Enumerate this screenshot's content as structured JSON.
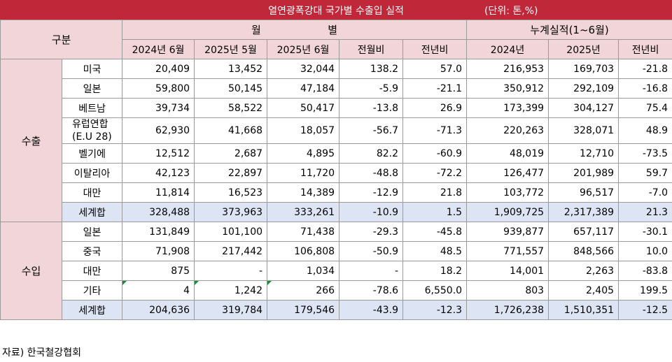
{
  "title": "열연광폭강대 국가별 수출입 실적",
  "unit": "(단위: 톤,%)",
  "header": {
    "category": "구분",
    "monthly": "월                    별",
    "cumulative": "누계실적(1~6월)",
    "columns": [
      "2024년 6월",
      "2025년 5월",
      "2025년 6월",
      "전월비",
      "전년비",
      "2024년",
      "2025년",
      "전년비"
    ]
  },
  "sections": {
    "export": "수출",
    "import": "수입"
  },
  "export_rows": [
    {
      "name": "미국",
      "v": [
        "20,409",
        "13,452",
        "32,044",
        "138.2",
        "57.0",
        "216,953",
        "169,703",
        "-21.8"
      ]
    },
    {
      "name": "일본",
      "v": [
        "59,800",
        "50,145",
        "47,184",
        "-5.9",
        "-21.1",
        "350,912",
        "292,109",
        "-16.8"
      ]
    },
    {
      "name": "베트남",
      "v": [
        "39,734",
        "58,522",
        "50,417",
        "-13.8",
        "26.9",
        "173,399",
        "304,127",
        "75.4"
      ]
    },
    {
      "name": "유럽연합",
      "name2": "(E.U 28)",
      "v": [
        "62,930",
        "41,668",
        "18,057",
        "-56.7",
        "-71.3",
        "220,263",
        "328,071",
        "48.9"
      ]
    },
    {
      "name": "벨기에",
      "v": [
        "12,512",
        "2,687",
        "4,895",
        "82.2",
        "-60.9",
        "48,019",
        "12,710",
        "-73.5"
      ]
    },
    {
      "name": "이탈리아",
      "v": [
        "42,123",
        "22,897",
        "11,720",
        "-48.8",
        "-72.2",
        "126,477",
        "201,989",
        "59.7"
      ]
    },
    {
      "name": "대만",
      "v": [
        "11,814",
        "16,523",
        "14,389",
        "-12.9",
        "21.8",
        "103,772",
        "96,517",
        "-7.0"
      ]
    },
    {
      "name": "세계합",
      "v": [
        "328,488",
        "373,963",
        "333,261",
        "-10.9",
        "1.5",
        "1,909,725",
        "2,317,389",
        "21.3"
      ]
    }
  ],
  "import_rows": [
    {
      "name": "일본",
      "v": [
        "131,849",
        "101,100",
        "71,438",
        "-29.3",
        "-45.8",
        "939,877",
        "657,117",
        "-30.1"
      ]
    },
    {
      "name": "중국",
      "v": [
        "71,908",
        "217,442",
        "106,808",
        "-50.9",
        "48.5",
        "771,557",
        "848,566",
        "10.0"
      ]
    },
    {
      "name": "대만",
      "v": [
        "875",
        "-",
        "1,034",
        "-",
        "18.2",
        "14,001",
        "2,263",
        "-83.8"
      ]
    },
    {
      "name": "기타",
      "v": [
        "4",
        "1,242",
        "266",
        "-78.6",
        "6,550.0",
        "803",
        "2,405",
        "199.5"
      ]
    },
    {
      "name": "세계합",
      "v": [
        "204,636",
        "319,784",
        "179,546",
        "-43.9",
        "-12.3",
        "1,726,238",
        "1,510,351",
        "-12.5"
      ]
    }
  ],
  "source": "자료) 한국철강협회"
}
